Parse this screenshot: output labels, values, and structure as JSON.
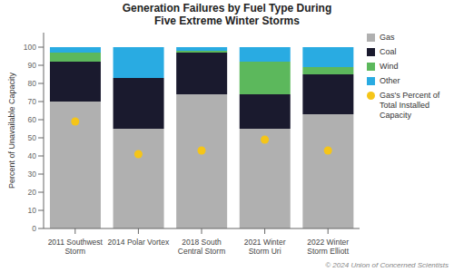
{
  "chart_data": {
    "type": "bar",
    "title": "Generation Failures by Fuel Type During\nFive Extreme Winter Storms",
    "ylabel": "Percent of Unavailable Capacity",
    "annotations": [
      "© 2024 Union of Concerned Scientists"
    ],
    "categories": [
      "2011 Southwest\nStorm",
      "2014 Polar Vortex",
      "2018 South\nCentral Storm",
      "2021 Winter\nStorm Uri",
      "2022 Winter\nStorm Elliott"
    ],
    "series": [
      {
        "name": "Gas",
        "color": "#b0b0b0",
        "values": [
          70,
          55,
          74,
          55,
          63
        ]
      },
      {
        "name": "Coal",
        "color": "#1a1a2e",
        "values": [
          22,
          28,
          23,
          19,
          22
        ]
      },
      {
        "name": "Wind",
        "color": "#5cb85c",
        "values": [
          5,
          0,
          1,
          18,
          4
        ]
      },
      {
        "name": "Other",
        "color": "#29abe2",
        "values": [
          3,
          17,
          2,
          8,
          11
        ]
      },
      {
        "name": "Gas's Percent of\nTotal Installed\nCapacity",
        "type": "scatter",
        "color": "#f5c518",
        "values": [
          59,
          41,
          43,
          49,
          43
        ]
      }
    ],
    "stacked": true,
    "ylim": [
      0,
      108
    ],
    "yticks": [
      0,
      10,
      20,
      30,
      40,
      50,
      60,
      70,
      80,
      90,
      100
    ],
    "grid": false,
    "legend": "right"
  }
}
